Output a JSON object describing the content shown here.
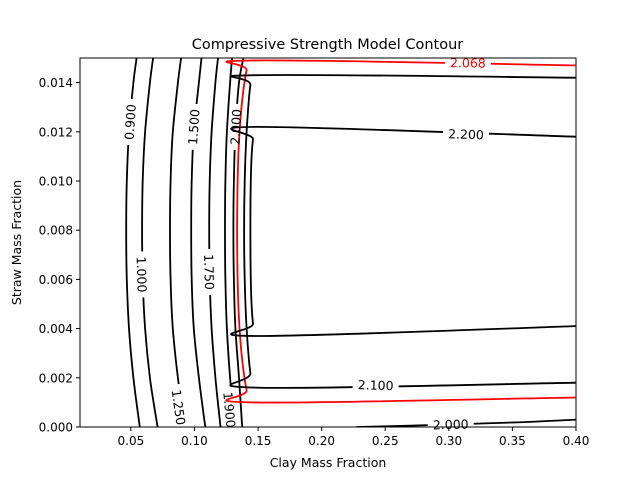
{
  "chart_data": {
    "type": "contour",
    "title": "Compressive Strength Model Contour",
    "xlabel": "Clay Mass Fraction",
    "ylabel": "Straw Mass Fraction",
    "xlim": [
      0.01,
      0.4
    ],
    "ylim": [
      0.0,
      0.015
    ],
    "xticks": [
      {
        "value": 0.05,
        "label": "0.05"
      },
      {
        "value": 0.1,
        "label": "0.10"
      },
      {
        "value": 0.15,
        "label": "0.15"
      },
      {
        "value": 0.2,
        "label": "0.20"
      },
      {
        "value": 0.25,
        "label": "0.25"
      },
      {
        "value": 0.3,
        "label": "0.30"
      },
      {
        "value": 0.35,
        "label": "0.35"
      },
      {
        "value": 0.4,
        "label": "0.40"
      }
    ],
    "yticks": [
      {
        "value": 0.0,
        "label": "0.000"
      },
      {
        "value": 0.002,
        "label": "0.002"
      },
      {
        "value": 0.004,
        "label": "0.004"
      },
      {
        "value": 0.006,
        "label": "0.006"
      },
      {
        "value": 0.008,
        "label": "0.008"
      },
      {
        "value": 0.01,
        "label": "0.010"
      },
      {
        "value": 0.012,
        "label": "0.012"
      },
      {
        "value": 0.014,
        "label": "0.014"
      }
    ],
    "contours": [
      {
        "level": "0.900",
        "color": "#000000",
        "points": [
          [
            0.057,
            0.0
          ],
          [
            0.052,
            0.002
          ],
          [
            0.0485,
            0.004
          ],
          [
            0.0468,
            0.006
          ],
          [
            0.0463,
            0.008
          ],
          [
            0.0468,
            0.01
          ],
          [
            0.0485,
            0.012
          ],
          [
            0.052,
            0.014
          ],
          [
            0.0545,
            0.015
          ]
        ],
        "labels": [
          {
            "x": 0.0495,
            "y": 0.0124,
            "text": "0.900"
          }
        ]
      },
      {
        "level": "1.000",
        "color": "#000000",
        "points": [
          [
            0.071,
            0.0
          ],
          [
            0.065,
            0.002
          ],
          [
            0.0612,
            0.004
          ],
          [
            0.0593,
            0.006
          ],
          [
            0.0588,
            0.008
          ],
          [
            0.0593,
            0.01
          ],
          [
            0.0612,
            0.012
          ],
          [
            0.065,
            0.014
          ],
          [
            0.0675,
            0.015
          ]
        ],
        "labels": [
          {
            "x": 0.0585,
            "y": 0.0062,
            "text": "1.000"
          }
        ]
      },
      {
        "level": "1.250",
        "color": "#000000",
        "points": [
          [
            0.0925,
            0.0
          ],
          [
            0.087,
            0.002
          ],
          [
            0.083,
            0.004
          ],
          [
            0.0812,
            0.006
          ],
          [
            0.0808,
            0.008
          ],
          [
            0.0812,
            0.01
          ],
          [
            0.083,
            0.012
          ],
          [
            0.087,
            0.014
          ],
          [
            0.0895,
            0.015
          ]
        ],
        "labels": [
          {
            "x": 0.0875,
            "y": 0.0008,
            "text": "1.250"
          }
        ]
      },
      {
        "level": "1.500",
        "color": "#000000",
        "points": [
          [
            0.1085,
            0.0
          ],
          [
            0.1035,
            0.002
          ],
          [
            0.0995,
            0.004
          ],
          [
            0.0978,
            0.006
          ],
          [
            0.0974,
            0.008
          ],
          [
            0.0978,
            0.01
          ],
          [
            0.0995,
            0.012
          ],
          [
            0.1035,
            0.014
          ],
          [
            0.1055,
            0.015
          ]
        ],
        "labels": [
          {
            "x": 0.0995,
            "y": 0.0122,
            "text": "1.500"
          }
        ]
      },
      {
        "level": "1.750",
        "color": "#000000",
        "points": [
          [
            0.1205,
            0.0
          ],
          [
            0.1165,
            0.002
          ],
          [
            0.1135,
            0.004
          ],
          [
            0.112,
            0.006
          ],
          [
            0.1116,
            0.008
          ],
          [
            0.112,
            0.01
          ],
          [
            0.1135,
            0.012
          ],
          [
            0.1165,
            0.014
          ],
          [
            0.1185,
            0.015
          ]
        ],
        "labels": [
          {
            "x": 0.1115,
            "y": 0.0063,
            "text": "1.750"
          }
        ]
      },
      {
        "level": "1.900",
        "color": "#000000",
        "points": [
          [
            0.1315,
            0.0
          ],
          [
            0.128,
            0.002
          ],
          [
            0.1255,
            0.004
          ],
          [
            0.1243,
            0.006
          ],
          [
            0.124,
            0.008
          ],
          [
            0.1243,
            0.01
          ],
          [
            0.1255,
            0.012
          ],
          [
            0.128,
            0.014
          ],
          [
            0.1295,
            0.015
          ]
        ],
        "labels": [
          {
            "x": 0.1275,
            "y": 0.0007,
            "text": "1.900"
          }
        ]
      },
      {
        "level": "2.000",
        "color": "#000000",
        "points": [
          [
            0.1385,
            0.015
          ],
          [
            0.135,
            0.014
          ],
          [
            0.1322,
            0.012
          ],
          [
            0.131,
            0.01
          ],
          [
            0.1306,
            0.008
          ],
          [
            0.131,
            0.006
          ],
          [
            0.1322,
            0.004
          ],
          [
            0.135,
            0.002
          ],
          [
            0.1375,
            0.0
          ]
        ],
        "labels": [
          {
            "x": 0.1325,
            "y": 0.0122,
            "text": "2.000"
          }
        ]
      },
      {
        "level": "2.068",
        "color": "#ff0000",
        "points": [
          [
            0.4,
            0.0147
          ],
          [
            0.145,
            0.0149
          ],
          [
            0.141,
            0.0145
          ],
          [
            0.137,
            0.013
          ],
          [
            0.1345,
            0.011
          ],
          [
            0.1335,
            0.008
          ],
          [
            0.1345,
            0.005
          ],
          [
            0.137,
            0.003
          ],
          [
            0.141,
            0.0015
          ],
          [
            0.145,
            0.001
          ],
          [
            0.4,
            0.0012
          ]
        ],
        "labels": [
          {
            "x": 0.315,
            "y": 0.0148,
            "text": "2.068"
          }
        ]
      },
      {
        "level": "2.100",
        "color": "#000000",
        "points": [
          [
            0.4,
            0.0142
          ],
          [
            0.148,
            0.0143
          ],
          [
            0.144,
            0.0139
          ],
          [
            0.141,
            0.012
          ],
          [
            0.1395,
            0.01
          ],
          [
            0.139,
            0.008
          ],
          [
            0.1395,
            0.006
          ],
          [
            0.141,
            0.004
          ],
          [
            0.144,
            0.0022
          ],
          [
            0.148,
            0.0016
          ],
          [
            0.4,
            0.0018
          ]
        ],
        "labels": [
          {
            "x": 0.2425,
            "y": 0.0017,
            "text": "2.100"
          }
        ]
      },
      {
        "level": "2.200",
        "color": "#000000",
        "points": [
          [
            0.4,
            0.0118
          ],
          [
            0.148,
            0.0122
          ],
          [
            0.146,
            0.0117
          ],
          [
            0.1445,
            0.0105
          ],
          [
            0.144,
            0.008
          ],
          [
            0.1445,
            0.0055
          ],
          [
            0.146,
            0.0042
          ],
          [
            0.148,
            0.0037
          ],
          [
            0.4,
            0.0041
          ]
        ],
        "labels": [
          {
            "x": 0.3135,
            "y": 0.0119,
            "text": "2.200"
          }
        ]
      },
      {
        "level": "2.000",
        "color": "#000000",
        "points": [
          [
            0.2275,
            0.0
          ],
          [
            0.3,
            0.0001
          ],
          [
            0.36,
            0.0002
          ],
          [
            0.4,
            0.0003
          ]
        ],
        "labels": [
          {
            "x": 0.3015,
            "y": 0.0001,
            "text": "2.000"
          }
        ]
      }
    ]
  }
}
